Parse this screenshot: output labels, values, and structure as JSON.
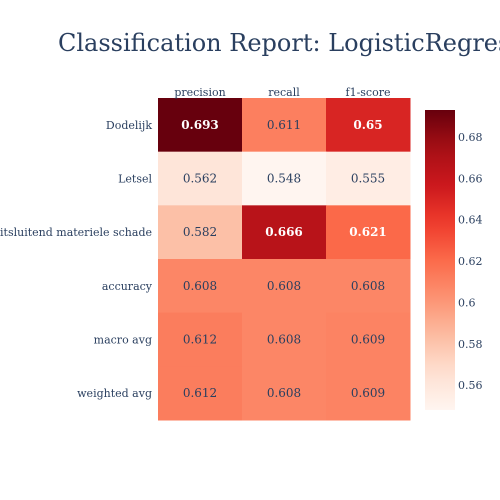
{
  "chart_data": {
    "type": "heatmap",
    "title": "Classification Report: LogisticRegression",
    "x_categories": [
      "precision",
      "recall",
      "f1-score"
    ],
    "y_categories": [
      "Dodelijk",
      "Letsel",
      "Uitsluitend materiele schade",
      "accuracy",
      "macro avg",
      "weighted avg"
    ],
    "values": [
      [
        0.693,
        0.611,
        0.65
      ],
      [
        0.562,
        0.548,
        0.555
      ],
      [
        0.582,
        0.666,
        0.621
      ],
      [
        0.608,
        0.608,
        0.608
      ],
      [
        0.612,
        0.608,
        0.609
      ],
      [
        0.612,
        0.608,
        0.609
      ]
    ],
    "cell_labels": [
      [
        "0.693",
        "0.611",
        "0.65"
      ],
      [
        "0.562",
        "0.548",
        "0.555"
      ],
      [
        "0.582",
        "0.666",
        "0.621"
      ],
      [
        "0.608",
        "0.608",
        "0.608"
      ],
      [
        "0.612",
        "0.608",
        "0.609"
      ],
      [
        "0.612",
        "0.608",
        "0.609"
      ]
    ],
    "colorscale": "Reds",
    "zmin": 0.548,
    "zmax": 0.693,
    "colorbar_ticks": [
      0.56,
      0.58,
      0.6,
      0.62,
      0.64,
      0.66,
      0.68
    ],
    "colorbar_tick_labels": [
      "0.56",
      "0.58",
      "0.6",
      "0.62",
      "0.64",
      "0.66",
      "0.68"
    ],
    "x_axis_side": "top",
    "colors": {
      "text": "#2a3f5f",
      "background": "#ffffff"
    }
  }
}
